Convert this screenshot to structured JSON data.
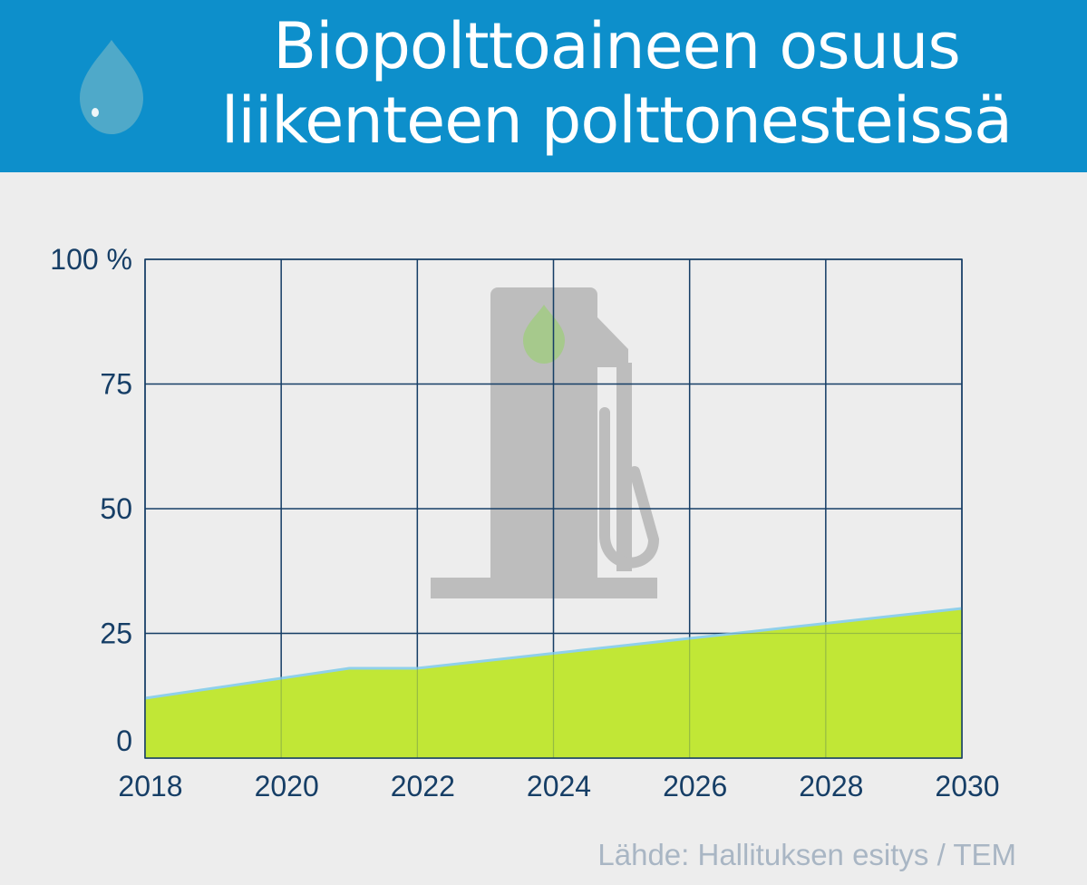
{
  "header": {
    "title_line1": "Biopolttoaineen osuus",
    "title_line2": "liikenteen polttonesteissä",
    "icon": "water-drop-icon"
  },
  "chart_data": {
    "type": "area",
    "title": "Biopolttoaineen osuus liikenteen polttonesteissä",
    "xlabel": "",
    "ylabel": "",
    "x": [
      2018,
      2019,
      2020,
      2021,
      2022,
      2023,
      2024,
      2025,
      2026,
      2027,
      2028,
      2029,
      2030
    ],
    "series": [
      {
        "values": [
          12,
          14,
          16,
          18,
          18,
          19.5,
          21,
          22.5,
          24,
          25.5,
          27,
          28.5,
          30
        ]
      }
    ],
    "xlim": [
      2018,
      2030
    ],
    "ylim": [
      0,
      100
    ],
    "x_ticks": [
      "2018",
      "2020",
      "2022",
      "2024",
      "2026",
      "2028",
      "2030"
    ],
    "y_ticks": [
      0,
      25,
      50,
      75,
      100
    ],
    "y_tick_labels": [
      "0",
      "25",
      "50",
      "75",
      "100 %"
    ],
    "grid": true,
    "background_icon": "fuel-pump-icon",
    "colors": {
      "area": "#c1e736",
      "line": "#8fd0ea",
      "grid": "#163e66",
      "header": "#0d8fcb"
    }
  },
  "footer": {
    "source": "Lähde: Hallituksen esitys / TEM"
  }
}
